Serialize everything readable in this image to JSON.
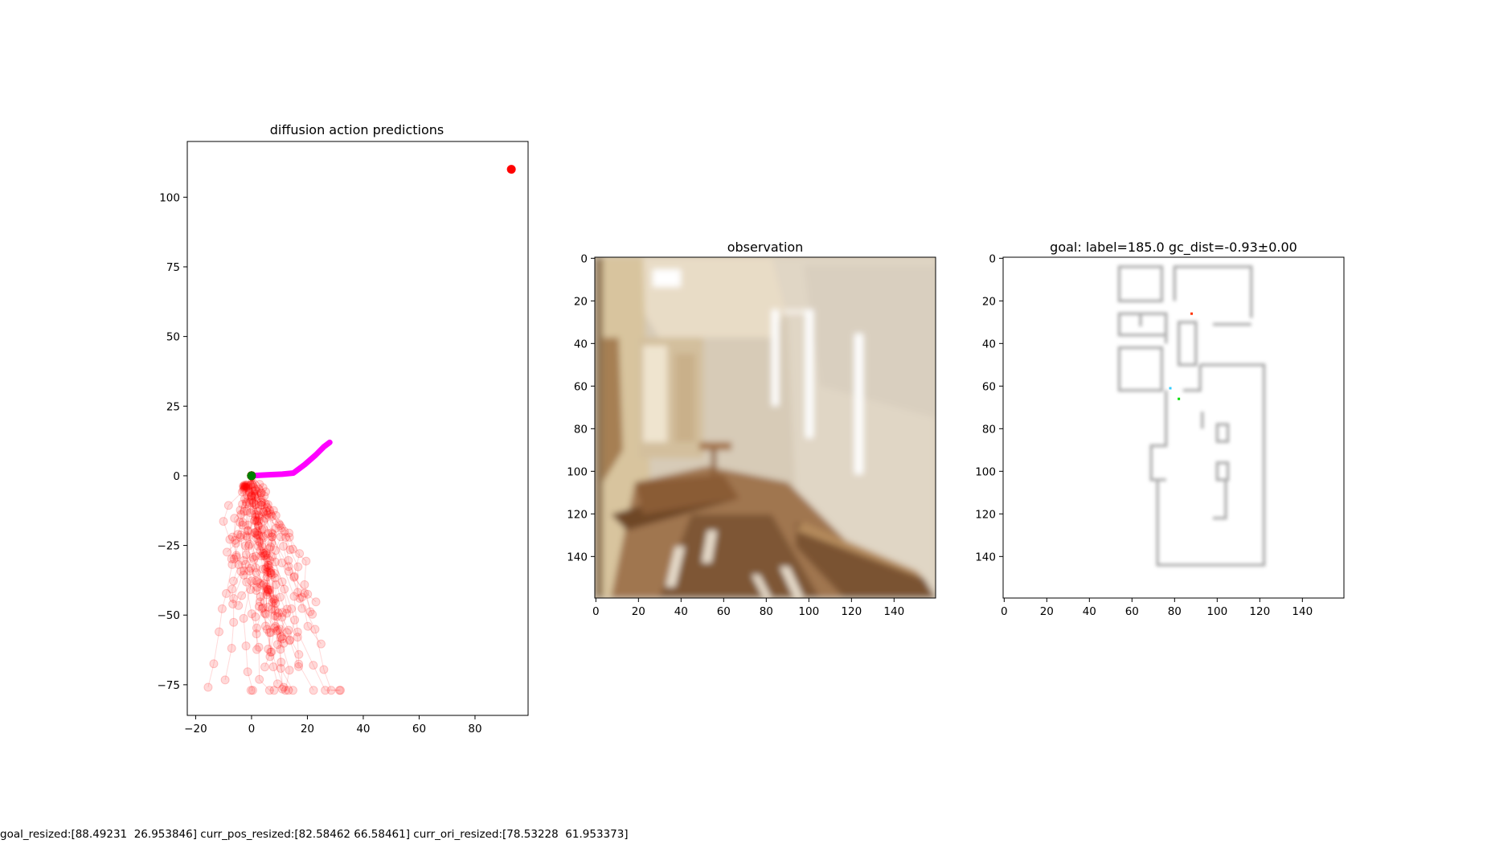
{
  "chart_data": [
    {
      "type": "scatter",
      "title": "diffusion action predictions",
      "xlim": [
        -23,
        99
      ],
      "ylim": [
        -86,
        120
      ],
      "xticks": [
        -20,
        0,
        20,
        40,
        60,
        80
      ],
      "yticks": [
        -75,
        -50,
        -25,
        0,
        25,
        50,
        75,
        100
      ],
      "grid": false,
      "legend": "none",
      "series": [
        {
          "kind": "sampled_trajectories",
          "color": "#ff0000",
          "alpha": 0.15,
          "count": 40,
          "length": 8,
          "start": [
            0,
            0
          ],
          "x_range": [
            -19,
            41
          ],
          "y_range": [
            -77,
            10
          ]
        },
        {
          "kind": "selected_trajectory",
          "color": "#ff00ff",
          "points": [
            [
              0,
              0
            ],
            [
              3,
              0.2
            ],
            [
              7,
              0.4
            ],
            [
              11,
              0.6
            ],
            [
              15,
              1
            ],
            [
              19,
              4
            ],
            [
              23,
              7.5
            ],
            [
              26,
              10.5
            ],
            [
              28,
              12
            ]
          ]
        },
        {
          "kind": "goal_point",
          "color": "#ff0000",
          "points": [
            [
              93,
              110
            ]
          ]
        },
        {
          "kind": "start_point",
          "color": "#008000",
          "points": [
            [
              0,
              0
            ]
          ]
        }
      ]
    },
    {
      "type": "image",
      "title": "observation",
      "xticks": [
        0,
        20,
        40,
        60,
        80,
        100,
        120,
        140
      ],
      "yticks": [
        0,
        20,
        40,
        60,
        80,
        100,
        120,
        140
      ],
      "extent": [
        -0.5,
        159.5,
        159.5,
        -0.5
      ]
    },
    {
      "type": "image",
      "title": "goal: label=185.0 gc_dist=-0.93±0.00",
      "xticks": [
        0,
        20,
        40,
        60,
        80,
        100,
        120,
        140
      ],
      "yticks": [
        0,
        20,
        40,
        60,
        80,
        100,
        120,
        140
      ],
      "extent": [
        -0.5,
        159.5,
        159.5,
        -0.5
      ],
      "markers": [
        {
          "color": "#ff3300",
          "x": 88,
          "y": 26
        },
        {
          "color": "#33ccff",
          "x": 78,
          "y": 61
        },
        {
          "color": "#00dd00",
          "x": 82,
          "y": 66
        }
      ]
    }
  ],
  "footer": "goal_resized:[88.49231  26.953846] curr_pos_resized:[82.58462 66.58461] curr_ori_resized:[78.53228  61.953373]"
}
